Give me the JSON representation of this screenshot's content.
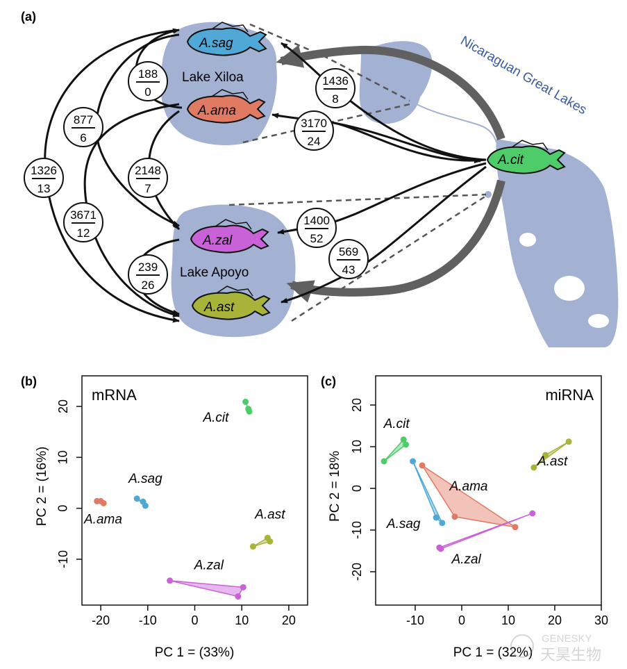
{
  "panel_a": {
    "label": "(a)",
    "region_label": "Nicaraguan Great Lakes",
    "lake_xiloa": "Lake Xiloa",
    "lake_apoyo": "Lake Apoyo",
    "species": {
      "sag": "A.sag",
      "ama": "A.ama",
      "zal": "A.zal",
      "ast": "A.ast",
      "cit": "A.cit"
    },
    "colors": {
      "sag": "#4fa8d5",
      "ama": "#e07a63",
      "zal": "#c862d6",
      "ast": "#a8b33a",
      "cit": "#4fcc6a",
      "lake": "#a3b1d2",
      "arrow_big": "#606060"
    },
    "counts": [
      {
        "top": "188",
        "bottom": "0"
      },
      {
        "top": "877",
        "bottom": "6"
      },
      {
        "top": "1326",
        "bottom": "13"
      },
      {
        "top": "2148",
        "bottom": "7"
      },
      {
        "top": "3671",
        "bottom": "12"
      },
      {
        "top": "239",
        "bottom": "26"
      },
      {
        "top": "1436",
        "bottom": "8"
      },
      {
        "top": "3170",
        "bottom": "24"
      },
      {
        "top": "1400",
        "bottom": "52"
      },
      {
        "top": "569",
        "bottom": "43"
      }
    ]
  },
  "watermark": {
    "top": "GENESKY",
    "bottom": "天昊生物"
  },
  "chart_data": [
    {
      "type": "scatter",
      "panel_label": "(b)",
      "title": "mRNA",
      "xlabel": "PC 1  =  (33%)",
      "ylabel": "PC 2  =  (16%)",
      "xlim": [
        -24,
        24
      ],
      "ylim": [
        -19,
        26
      ],
      "xticks": [
        -20,
        -10,
        0,
        10,
        20
      ],
      "yticks": [
        -10,
        0,
        10,
        20
      ],
      "xtick_labels": [
        "-20",
        "-10",
        "0",
        "10",
        "20"
      ],
      "ytick_labels": [
        "-10",
        "0",
        "10",
        "20"
      ],
      "series": [
        {
          "name": "A.ama",
          "color": "#e07a63",
          "points": [
            [
              -20.8,
              1.4
            ],
            [
              -20.0,
              1.4
            ],
            [
              -19.4,
              1.0
            ]
          ],
          "label_at": [
            -19.5,
            -3
          ]
        },
        {
          "name": "A.sag",
          "color": "#4fa8d5",
          "points": [
            [
              -12.3,
              1.9
            ],
            [
              -11.0,
              1.3
            ],
            [
              -10.5,
              0.5
            ]
          ],
          "label_at": [
            -10.5,
            5
          ]
        },
        {
          "name": "A.cit",
          "color": "#4fcc6a",
          "points": [
            [
              10.8,
              20.9
            ],
            [
              11.4,
              19.5
            ],
            [
              11.6,
              19.0
            ]
          ],
          "label_at": [
            4.5,
            17
          ]
        },
        {
          "name": "A.ast",
          "color": "#a8b33a",
          "points": [
            [
              12.4,
              -7.5
            ],
            [
              15.5,
              -5.8
            ],
            [
              16.0,
              -6.5
            ]
          ],
          "label_at": [
            16,
            -2
          ]
        },
        {
          "name": "A.zal",
          "color": "#c862d6",
          "points": [
            [
              -5.3,
              -14.2
            ],
            [
              9.2,
              -17.3
            ],
            [
              10.3,
              -15.5
            ]
          ],
          "label_at": [
            3,
            -12
          ]
        }
      ]
    },
    {
      "type": "scatter",
      "panel_label": "(c)",
      "title": "miRNA",
      "xlabel": "PC 1  =  (32%)",
      "ylabel": "PC 2  =  18%",
      "xlim": [
        -18.5,
        30
      ],
      "ylim": [
        -28,
        27
      ],
      "xticks": [
        -10,
        0,
        10,
        20,
        30
      ],
      "yticks": [
        -20,
        -10,
        0,
        10,
        20
      ],
      "xtick_labels": [
        "-10",
        "0",
        "10",
        "20",
        "30"
      ],
      "ytick_labels": [
        "-20",
        "-10",
        "0",
        "10",
        "20"
      ],
      "series": [
        {
          "name": "A.cit",
          "color": "#4fcc6a",
          "points": [
            [
              -16.7,
              6.5
            ],
            [
              -12.5,
              11.7
            ],
            [
              -12.0,
              10.5
            ]
          ],
          "label_at": [
            -14,
            14.5
          ]
        },
        {
          "name": "A.ast",
          "color": "#a8b33a",
          "points": [
            [
              15.5,
              5.0
            ],
            [
              18.0,
              8.0
            ],
            [
              23.0,
              11.2
            ]
          ],
          "label_at": [
            19.5,
            5.5
          ]
        },
        {
          "name": "A.sag",
          "color": "#4fa8d5",
          "points": [
            [
              -10.5,
              6.5
            ],
            [
              -5.5,
              -7.0
            ],
            [
              -4.2,
              -8.3
            ]
          ],
          "label_at": [
            -12.5,
            -9.5
          ]
        },
        {
          "name": "A.ama",
          "color": "#e07a63",
          "points": [
            [
              -8.5,
              5.5
            ],
            [
              -1.5,
              -6.8
            ],
            [
              11.5,
              -9.3
            ]
          ],
          "label_at": [
            1.5,
            -0.5
          ]
        },
        {
          "name": "A.zal",
          "color": "#c862d6",
          "points": [
            [
              -4.8,
              -14.2
            ],
            [
              15.2,
              -6.0
            ],
            [
              -4.5,
              -14.5
            ]
          ],
          "label_at": [
            1,
            -18
          ]
        }
      ]
    }
  ]
}
